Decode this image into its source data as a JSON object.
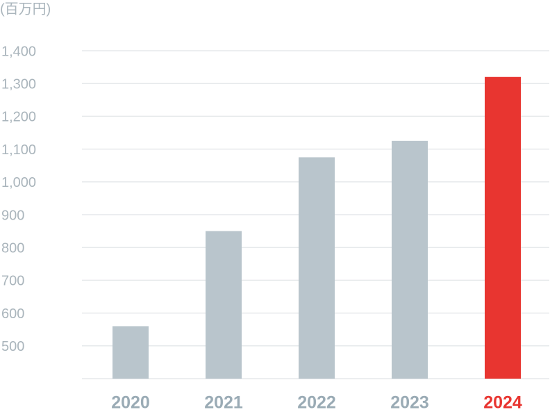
{
  "chart_data": {
    "type": "bar",
    "y_label": "(百万円)",
    "categories": [
      "2020",
      "2021",
      "2022",
      "2023",
      "2024"
    ],
    "values": [
      560,
      850,
      1075,
      1125,
      1320
    ],
    "colors": [
      "#b9c5cc",
      "#b9c5cc",
      "#b9c5cc",
      "#b9c5cc",
      "#e83530"
    ],
    "label_colors": [
      "#9aabb5",
      "#9aabb5",
      "#9aabb5",
      "#9aabb5",
      "#e83530"
    ],
    "ylim": [
      400,
      1400
    ],
    "yticks": [
      500,
      600,
      700,
      800,
      900,
      {
        "value": 1000,
        "label": "1,000"
      },
      {
        "value": 1100,
        "label": "1,100"
      },
      {
        "value": 1200,
        "label": "1,200"
      },
      {
        "value": 1300,
        "label": "1,300"
      },
      {
        "value": 1400,
        "label": "1,400"
      }
    ],
    "grid": true
  }
}
